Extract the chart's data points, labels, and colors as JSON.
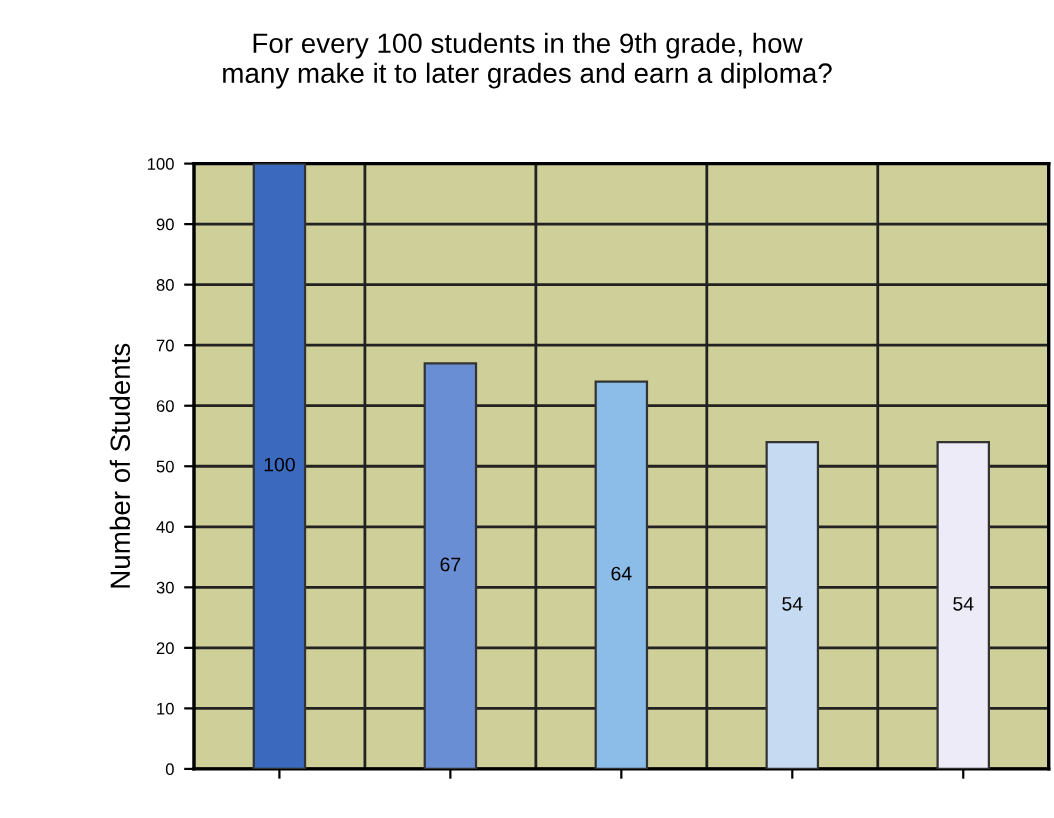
{
  "chart_data": {
    "type": "bar",
    "title": "For every 100 students in the 9th grade, how\nmany make it to later grades and earn a diploma?",
    "ylabel": "Number of Students",
    "categories": [
      null,
      null,
      null,
      null,
      null
    ],
    "values": [
      100,
      67,
      64,
      54,
      54
    ],
    "colors": [
      "#3a69bd",
      "#6a8ed4",
      "#8cbde8",
      "#c6dbf2",
      "#ecebf7"
    ],
    "ylim": [
      0,
      100
    ],
    "yticks": [
      0,
      10,
      20,
      30,
      40,
      50,
      60,
      70,
      80,
      90,
      100
    ],
    "grid": true,
    "data_labels": true
  }
}
